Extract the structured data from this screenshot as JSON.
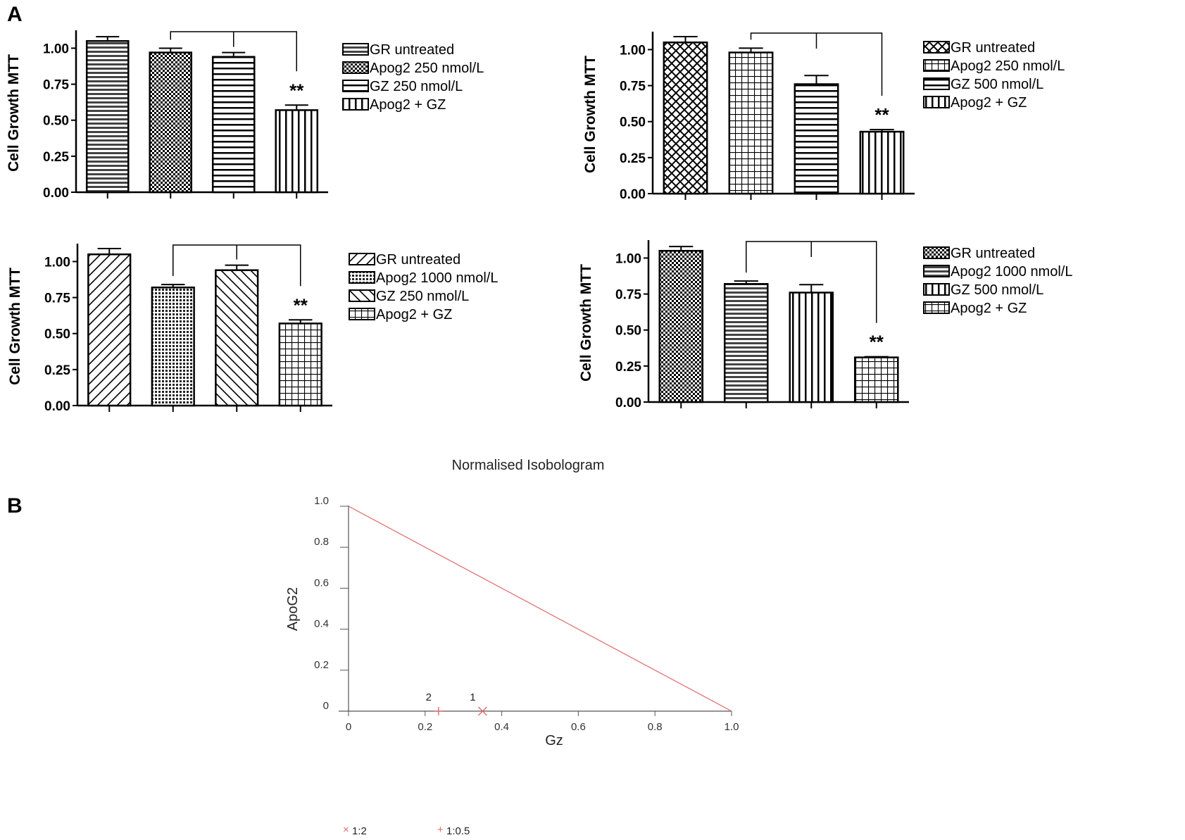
{
  "figure": {
    "panel_a_label": "A",
    "panel_b_label": "B"
  },
  "chart_data": [
    {
      "type": "bar",
      "ylabel": "Cell Growth MTT",
      "ylim": [
        0,
        1.1
      ],
      "yticks": [
        "0.00",
        "0.25",
        "0.50",
        "0.75",
        "1.00"
      ],
      "categories": [
        "GR untreated",
        "Apog2 250 nmol/L",
        "GZ 250 nmol/L",
        "Apog2 + GZ"
      ],
      "values": [
        1.05,
        0.97,
        0.94,
        0.57
      ],
      "errors": [
        0.03,
        0.03,
        0.03,
        0.035
      ],
      "patterns": [
        "hstripe",
        "check",
        "hline",
        "vline"
      ],
      "significance": "**",
      "legend_position": "right"
    },
    {
      "type": "bar",
      "ylabel": "Cell Growth MTT",
      "ylim": [
        0,
        1.1
      ],
      "yticks": [
        "0.00",
        "0.25",
        "0.50",
        "0.75",
        "1.00"
      ],
      "categories": [
        "GR untreated",
        "Apog2 250 nmol/L",
        "GZ 500 nmol/L",
        "Apog2 + GZ"
      ],
      "values": [
        1.05,
        0.98,
        0.76,
        0.43
      ],
      "errors": [
        0.04,
        0.03,
        0.06,
        0.015
      ],
      "patterns": [
        "crosshatch",
        "grid",
        "hline",
        "vline"
      ],
      "significance": "**",
      "legend_position": "right"
    },
    {
      "type": "bar",
      "ylabel": "Cell Growth MTT",
      "ylim": [
        0,
        1.1
      ],
      "yticks": [
        "0.00",
        "0.25",
        "0.50",
        "0.75",
        "1.00"
      ],
      "categories": [
        "GR untreated",
        "Apog2 1000 nmol/L",
        "GZ 250 nmol/L",
        "Apog2 + GZ"
      ],
      "values": [
        1.05,
        0.82,
        0.94,
        0.57
      ],
      "errors": [
        0.04,
        0.02,
        0.035,
        0.025
      ],
      "patterns": [
        "diagup",
        "dots",
        "diagdown",
        "grid"
      ],
      "significance": "**",
      "legend_position": "right"
    },
    {
      "type": "bar",
      "ylabel": "Cell Growth MTT",
      "ylim": [
        0,
        1.1
      ],
      "yticks": [
        "0.00",
        "0.25",
        "0.50",
        "0.75",
        "1.00"
      ],
      "categories": [
        "GR untreated",
        "Apog2 1000 nmol/L",
        "GZ 500 nmol/L",
        "Apog2 + GZ"
      ],
      "values": [
        1.05,
        0.82,
        0.76,
        0.31
      ],
      "errors": [
        0.03,
        0.02,
        0.055,
        0.005
      ],
      "patterns": [
        "check",
        "hstripe",
        "vline",
        "grid"
      ],
      "significance": "**",
      "legend_position": "right"
    },
    {
      "type": "scatter",
      "title": "Normalised Isobologram",
      "xlabel": "Gz",
      "ylabel": "ApoG2",
      "xlim": [
        0,
        1.0
      ],
      "ylim": [
        0,
        1.0
      ],
      "xticks": [
        "0",
        "0.2",
        "0.4",
        "0.6",
        "0.8",
        "1.0"
      ],
      "yticks": [
        "0",
        "0.2",
        "0.4",
        "0.6",
        "0.8",
        "1.0"
      ],
      "additivity_line": [
        [
          0,
          1.0
        ],
        [
          1.0,
          0
        ]
      ],
      "points": [
        {
          "label": "1",
          "x": 0.35,
          "y": 0.0,
          "marker": "x"
        },
        {
          "label": "2",
          "x": 0.235,
          "y": 0.0,
          "marker": "+"
        }
      ],
      "legend": [
        {
          "marker": "×",
          "label": "1:2"
        },
        {
          "marker": "+",
          "label": "1:0.5"
        }
      ],
      "color": "#e06a6a"
    }
  ]
}
